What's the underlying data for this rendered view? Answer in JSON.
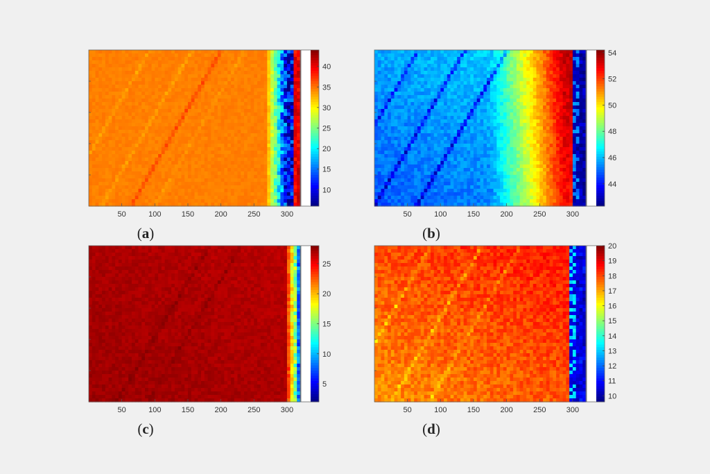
{
  "chart_data": [
    {
      "id": "a",
      "type": "heatmap",
      "caption": "a",
      "x_ticks": [
        50,
        100,
        150,
        200,
        250,
        300
      ],
      "xlim": [
        0,
        320
      ],
      "colorbar": {
        "ticks": [
          10,
          15,
          20,
          25,
          30,
          35,
          40
        ],
        "range": [
          6,
          44
        ]
      },
      "field": {
        "base": 34.5,
        "tint": 0,
        "tint_strength": 0,
        "stripes": [
          {
            "ex": 0.28,
            "ey": 0.02,
            "w": 0.01,
            "v": -1.5
          },
          {
            "ex": 0.48,
            "ey": 0.02,
            "w": 0.011,
            "v": -1.5
          },
          {
            "ex": 0.62,
            "ey": 0.02,
            "w": 0.012,
            "v": 2.5
          },
          {
            "ex": 0.73,
            "ey": 0.02,
            "w": 0.01,
            "v": -1.0
          }
        ],
        "edge": {
          "start": 0.84,
          "fringe": 0.06,
          "max": 26,
          "stripe": 0.97,
          "stripe_v": 38
        }
      }
    },
    {
      "id": "b",
      "type": "heatmap",
      "caption": "b",
      "x_ticks": [
        50,
        100,
        150,
        200,
        250,
        300
      ],
      "xlim": [
        0,
        320
      ],
      "colorbar": {
        "ticks": [
          44,
          46,
          48,
          50,
          52,
          54
        ],
        "range": [
          42.3,
          54.2
        ]
      },
      "field": {
        "base": 46.6,
        "tint": -1.8,
        "tint_strength": 1,
        "stripes": [
          {
            "ex": 0.2,
            "ey": 0.02,
            "w": 0.01,
            "v": -1.8
          },
          {
            "ex": 0.42,
            "ey": 0.02,
            "w": 0.012,
            "v": -2.2
          },
          {
            "ex": 0.62,
            "ey": 0.02,
            "w": 0.012,
            "v": -2.4
          }
        ],
        "ramp": {
          "start": 0.55,
          "end": 0.9,
          "add": 7.0
        },
        "edge": {
          "start": 0.93,
          "fringe": 0.01,
          "max": 0,
          "stripe": 0.97,
          "stripe_v": 42.4,
          "mode": "band"
        }
      }
    },
    {
      "id": "c",
      "type": "heatmap",
      "caption": "c",
      "x_ticks": [
        50,
        100,
        150,
        200,
        250,
        300
      ],
      "xlim": [
        0,
        320
      ],
      "colorbar": {
        "ticks": [
          5,
          10,
          15,
          20,
          25
        ],
        "range": [
          2,
          28
        ]
      },
      "field": {
        "base": 26.5,
        "tint": 0.8,
        "tint_strength": 1,
        "stripes": [
          {
            "ex": 0.55,
            "ey": 0.05,
            "w": 0.012,
            "v": 0.8
          },
          {
            "ex": 0.7,
            "ey": 0.05,
            "w": 0.012,
            "v": 0.8
          }
        ],
        "edge": {
          "start": 0.93,
          "fringe": 0.03,
          "max": 12,
          "stripe": 0.98,
          "stripe_v": 6
        }
      }
    },
    {
      "id": "d",
      "type": "heatmap",
      "caption": "d",
      "x_ticks": [
        50,
        100,
        150,
        200,
        250,
        300
      ],
      "xlim": [
        0,
        320
      ],
      "colorbar": {
        "ticks": [
          10,
          11,
          12,
          13,
          14,
          15,
          16,
          17,
          18,
          19,
          20
        ],
        "range": [
          9.6,
          20
        ]
      },
      "field": {
        "base": 18.6,
        "tint": -1.4,
        "tint_strength": 1,
        "stripes": [
          {
            "ex": 0.26,
            "ey": 0.02,
            "w": 0.01,
            "v": -1.0
          },
          {
            "ex": 0.5,
            "ey": 0.02,
            "w": 0.012,
            "v": -1.0
          },
          {
            "ex": 0.68,
            "ey": 0.02,
            "w": 0.012,
            "v": -0.8
          }
        ],
        "edge": {
          "start": 0.92,
          "fringe": 0.01,
          "max": 0,
          "stripe": 0.96,
          "stripe_v": 10.2,
          "mode": "band"
        }
      }
    }
  ]
}
